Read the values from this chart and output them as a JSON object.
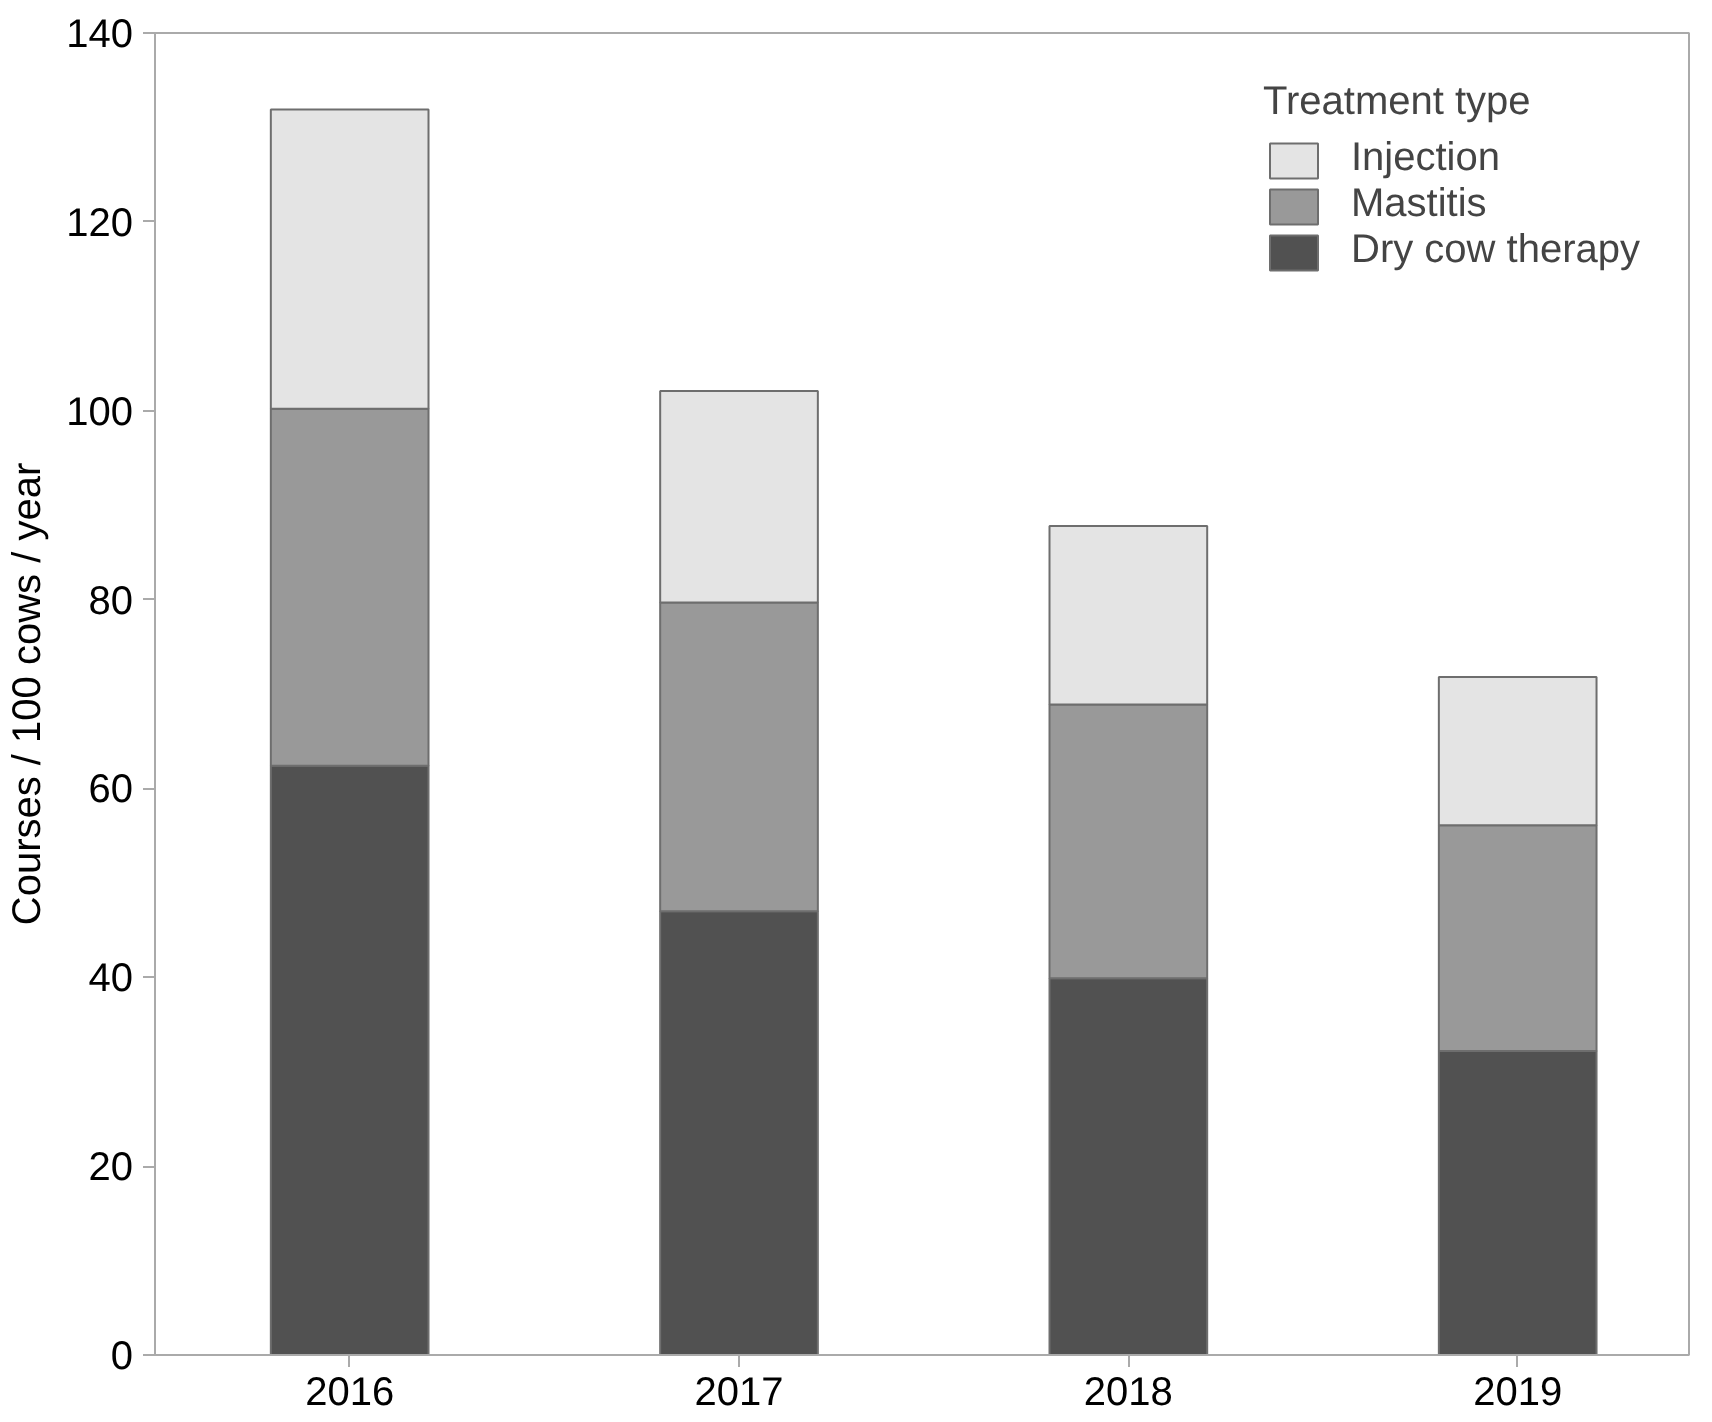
{
  "chart_data": {
    "type": "bar",
    "stacked": true,
    "ylabel": "Courses / 100 cows / year",
    "legend_title": "Treatment type",
    "categories": [
      "2016",
      "2017",
      "2018",
      "2019"
    ],
    "series": [
      {
        "name": "Dry cow therapy",
        "color": "#515151",
        "values": [
          62.4,
          47,
          39.9,
          32.2
        ]
      },
      {
        "name": "Mastitis",
        "color": "#999999",
        "values": [
          37.8,
          32.7,
          29,
          23.9
        ]
      },
      {
        "name": "Injection",
        "color": "#e4e4e4",
        "values": [
          31.7,
          22.4,
          18.9,
          15.7
        ]
      }
    ],
    "ylim": [
      0,
      140
    ],
    "yticks": [
      0,
      20,
      40,
      60,
      80,
      100,
      120,
      140
    ],
    "grid": false,
    "legend": "top right"
  }
}
